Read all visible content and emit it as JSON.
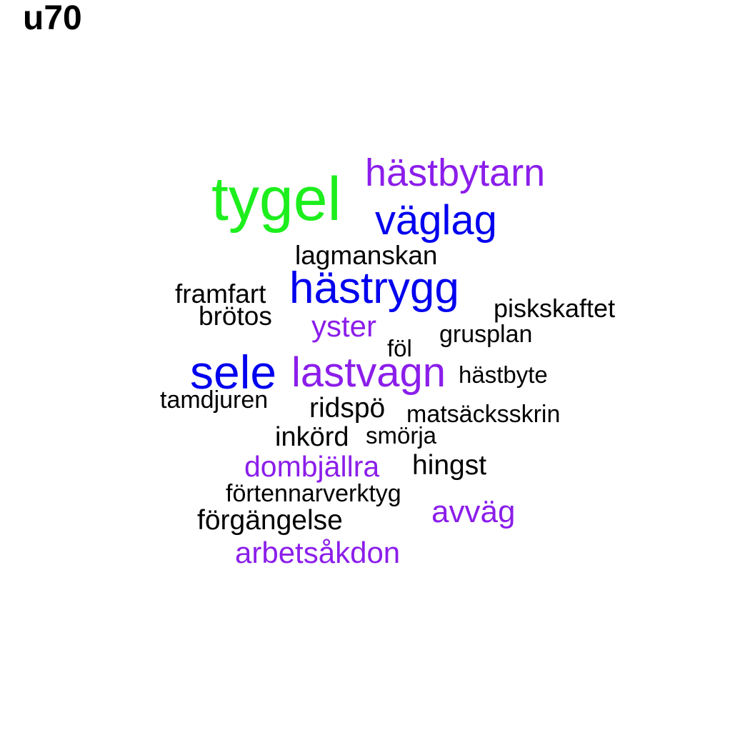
{
  "title": "u70",
  "colors": {
    "black": "#000000",
    "blue": "#0000ee",
    "purple": "#8b1eea",
    "green": "#1dee1d"
  },
  "words": [
    "tygel",
    "hästbytarn",
    "väglag",
    "lagmanskan",
    "hästrygg",
    "framfart",
    "brötos",
    "piskskaftet",
    "yster",
    "grusplan",
    "föl",
    "sele",
    "lastvagn",
    "hästbyte",
    "tamdjuren",
    "ridspö",
    "matsäcksskrin",
    "inkörd",
    "smörja",
    "dombjällra",
    "hingst",
    "förtennarverktyg",
    "avväg",
    "förgängelse",
    "arbetsåkdon"
  ]
}
